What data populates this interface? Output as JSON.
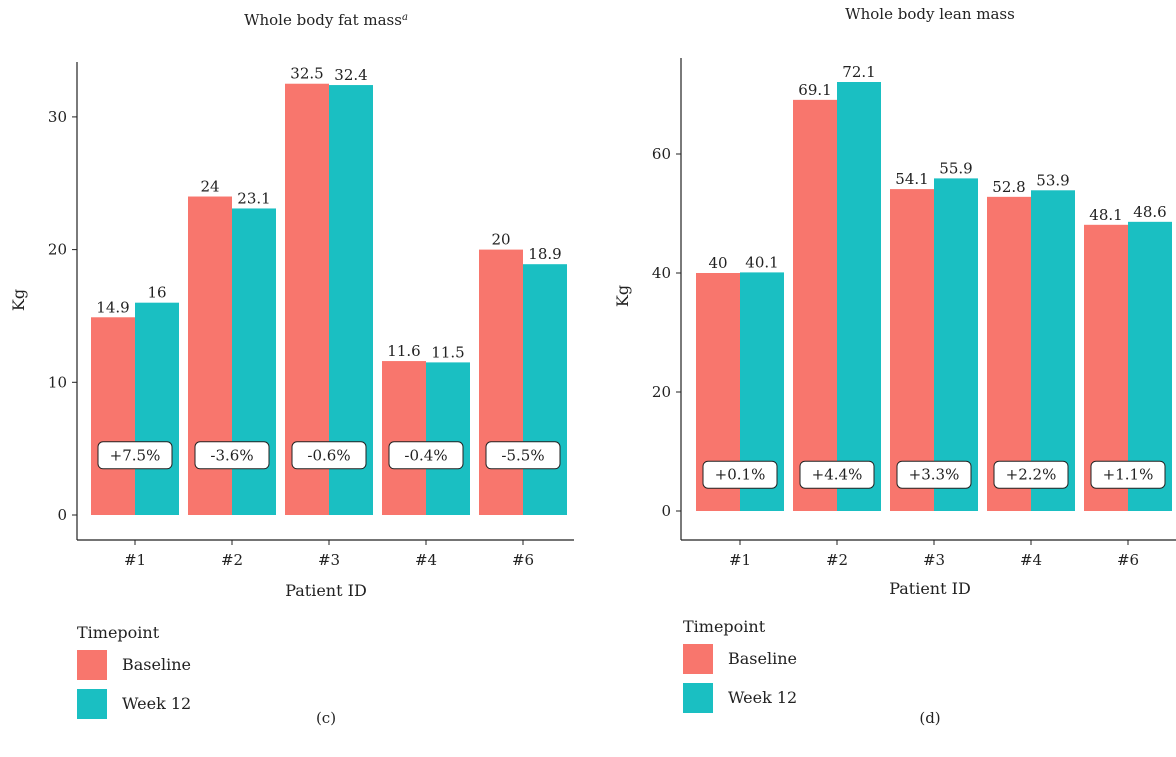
{
  "colors": {
    "baseline": "#F8766D",
    "week12": "#1ABFC2",
    "axis": "#222222",
    "text": "#222222"
  },
  "chart_data": [
    {
      "type": "bar",
      "panel": "(c)",
      "title": "Whole body fat mass",
      "title_superscript": "a",
      "xlabel": "Patient ID",
      "ylabel": "Kg",
      "ylim": [
        0,
        34
      ],
      "yticks": [
        0,
        10,
        20,
        30
      ],
      "grid": false,
      "categories": [
        "#1",
        "#2",
        "#3",
        "#4",
        "#6"
      ],
      "series": [
        {
          "name": "Baseline",
          "values": [
            14.9,
            24,
            32.5,
            11.6,
            20
          ]
        },
        {
          "name": "Week 12",
          "values": [
            16,
            23.1,
            32.4,
            11.5,
            18.9
          ]
        }
      ],
      "value_labels": [
        [
          "14.9",
          "16"
        ],
        [
          "24",
          "23.1"
        ],
        [
          "32.5",
          "32.4"
        ],
        [
          "11.6",
          "11.5"
        ],
        [
          "20",
          "18.9"
        ]
      ],
      "change_labels": [
        "+7.5%",
        "-3.6%",
        "-0.6%",
        "-0.4%",
        "-5.5%"
      ],
      "change_label_y": 4.5,
      "legend": {
        "title": "Timepoint",
        "placement": "bottom-left",
        "items": [
          "Baseline",
          "Week 12"
        ]
      }
    },
    {
      "type": "bar",
      "panel": "(d)",
      "title": "Whole body lean mass",
      "xlabel": "Patient ID",
      "ylabel": "Kg",
      "ylim": [
        0,
        76
      ],
      "yticks": [
        0,
        20,
        40,
        60
      ],
      "grid": false,
      "categories": [
        "#1",
        "#2",
        "#3",
        "#4",
        "#6"
      ],
      "series": [
        {
          "name": "Baseline",
          "values": [
            40,
            69.1,
            54.1,
            52.8,
            48.1
          ]
        },
        {
          "name": "Week 12",
          "values": [
            40.1,
            72.1,
            55.9,
            53.9,
            48.6
          ]
        }
      ],
      "value_labels": [
        [
          "40",
          "40.1"
        ],
        [
          "69.1",
          "72.1"
        ],
        [
          "54.1",
          "55.9"
        ],
        [
          "52.8",
          "53.9"
        ],
        [
          "48.1",
          "48.6"
        ]
      ],
      "change_labels": [
        "+0.1%",
        "+4.4%",
        "+3.3%",
        "+2.2%",
        "+1.1%"
      ],
      "change_label_y": 6.1,
      "legend": {
        "title": "Timepoint",
        "placement": "bottom-left",
        "items": [
          "Baseline",
          "Week 12"
        ]
      }
    }
  ]
}
